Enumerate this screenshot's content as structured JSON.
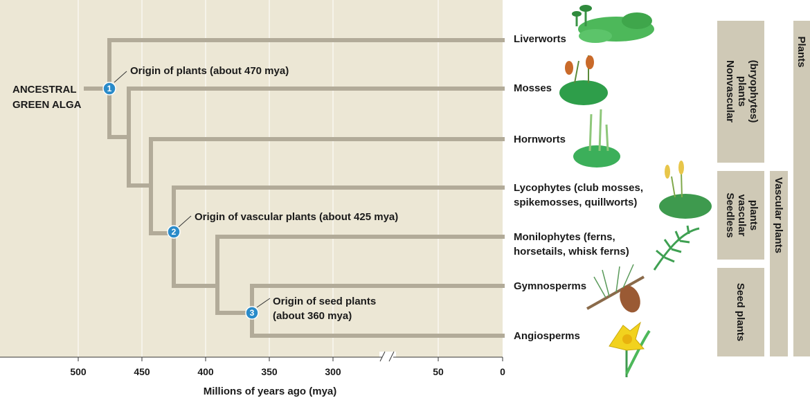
{
  "diagram": {
    "root_label": [
      "ANCESTRAL",
      "GREEN ALGA"
    ],
    "events": [
      {
        "number": "1",
        "lines": [
          "Origin of plants (about 470 mya)"
        ],
        "mya": 470
      },
      {
        "number": "2",
        "lines": [
          "Origin of vascular plants (about 425 mya)"
        ],
        "mya": 425
      },
      {
        "number": "3",
        "lines": [
          "Origin of seed plants",
          "(about 360 mya)"
        ],
        "mya": 360
      }
    ],
    "taxa": [
      {
        "key": "liverworts",
        "lines": [
          "Liverworts"
        ]
      },
      {
        "key": "mosses",
        "lines": [
          "Mosses"
        ]
      },
      {
        "key": "hornworts",
        "lines": [
          "Hornworts"
        ]
      },
      {
        "key": "lycophytes",
        "lines": [
          "Lycophytes (club mosses,",
          "spikemosses, quillworts)"
        ]
      },
      {
        "key": "monilophytes",
        "lines": [
          "Monilophytes (ferns,",
          "horsetails, whisk ferns)"
        ]
      },
      {
        "key": "gymnosperms",
        "lines": [
          "Gymnosperms"
        ]
      },
      {
        "key": "angiosperms",
        "lines": [
          "Angiosperms"
        ]
      }
    ],
    "groups": [
      {
        "key": "nonvascular",
        "lines": [
          "Nonvascular",
          "plants",
          "(bryophytes)"
        ]
      },
      {
        "key": "seedless",
        "lines": [
          "Seedless",
          "vascular",
          "plants"
        ]
      },
      {
        "key": "seed",
        "lines": [
          "Seed plants"
        ]
      },
      {
        "key": "vascular",
        "lines": [
          "Vascular plants"
        ]
      },
      {
        "key": "plants",
        "lines": [
          "Plants"
        ]
      }
    ],
    "axis": {
      "title": "Millions of years ago (mya)",
      "ticks": [
        "500",
        "450",
        "400",
        "350",
        "300",
        "50",
        "0"
      ],
      "break_mark": "//"
    }
  },
  "colors": {
    "panel": "#ECE7D5",
    "branch": "#B2AB99",
    "group_box": "#CFC9B6",
    "marker": "#2A8BC9"
  }
}
